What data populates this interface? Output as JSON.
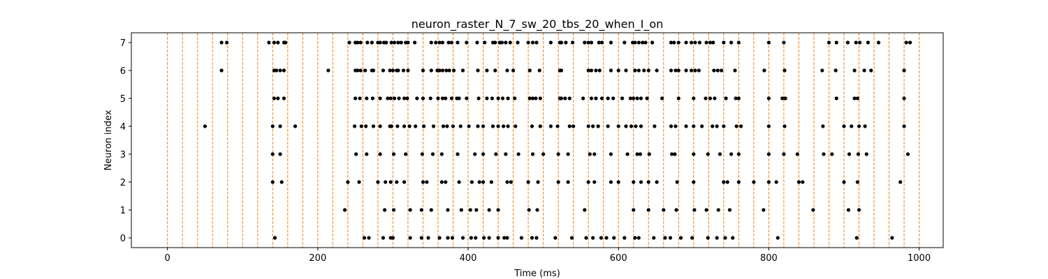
{
  "chart_data": {
    "type": "scatter",
    "title": "neuron_raster_N_7_sw_20_tbs_20_when_I_on",
    "xlabel": "Time (ms)",
    "ylabel": "Neuron index",
    "xlim": [
      -48,
      1032
    ],
    "ylim": [
      -0.35,
      7.35
    ],
    "xticks": [
      0,
      200,
      400,
      600,
      800,
      1000
    ],
    "yticks": [
      0,
      1,
      2,
      3,
      4,
      5,
      6,
      7
    ],
    "grid": false,
    "legend": "none",
    "marker_color": "#000000",
    "vline_color": "#ff7f0e",
    "vlines": [
      0,
      20,
      40,
      60,
      80,
      100,
      120,
      140,
      160,
      180,
      200,
      220,
      240,
      260,
      280,
      300,
      320,
      340,
      360,
      380,
      400,
      420,
      440,
      460,
      480,
      500,
      520,
      540,
      560,
      580,
      600,
      620,
      640,
      660,
      680,
      700,
      720,
      740,
      760,
      780,
      800,
      820,
      840,
      860,
      880,
      900,
      920,
      940,
      960,
      980,
      1000
    ],
    "spikes": [
      {
        "neuron": 7,
        "times": [
          72,
          79,
          135,
          142,
          147,
          155,
          157,
          242,
          250,
          253,
          257,
          266,
          272,
          280,
          283,
          288,
          291,
          298,
          302,
          307,
          311,
          317,
          320,
          329,
          351,
          357,
          362,
          366,
          374,
          378,
          386,
          398,
          412,
          422,
          433,
          436,
          442,
          445,
          450,
          456,
          466,
          480,
          486,
          491,
          510,
          522,
          524,
          530,
          539,
          555,
          560,
          564,
          574,
          578,
          590,
          608,
          619,
          622,
          627,
          632,
          636,
          645,
          670,
          674,
          680,
          690,
          697,
          702,
          708,
          717,
          722,
          726,
          740,
          750,
          760,
          800,
          820,
          880,
          890,
          905,
          916,
          921,
          932,
          946,
          983,
          988
        ]
      },
      {
        "neuron": 6,
        "times": [
          72,
          142,
          145,
          150,
          155,
          214,
          250,
          253,
          257,
          263,
          272,
          274,
          287,
          296,
          300,
          305,
          307,
          314,
          320,
          340,
          351,
          359,
          362,
          366,
          371,
          375,
          381,
          393,
          413,
          425,
          436,
          452,
          460,
          482,
          495,
          522,
          524,
          560,
          564,
          570,
          575,
          590,
          600,
          610,
          622,
          627,
          634,
          640,
          651,
          670,
          676,
          680,
          690,
          697,
          702,
          707,
          727,
          732,
          737,
          755,
          794,
          821,
          871,
          889,
          914,
          927,
          936,
          980
        ]
      },
      {
        "neuron": 5,
        "times": [
          142,
          147,
          155,
          250,
          256,
          265,
          273,
          283,
          293,
          297,
          302,
          308,
          315,
          319,
          332,
          340,
          350,
          360,
          366,
          370,
          378,
          385,
          388,
          398,
          414,
          425,
          432,
          440,
          446,
          453,
          462,
          482,
          486,
          490,
          496,
          522,
          524,
          529,
          535,
          553,
          564,
          570,
          578,
          586,
          593,
          605,
          616,
          620,
          625,
          630,
          638,
          658,
          680,
          700,
          716,
          722,
          728,
          743,
          756,
          760,
          800,
          818,
          822,
          890,
          914,
          918,
          980
        ]
      },
      {
        "neuron": 4,
        "times": [
          50,
          140,
          150,
          170,
          249,
          258,
          264,
          274,
          283,
          296,
          298,
          306,
          315,
          322,
          330,
          341,
          354,
          367,
          372,
          380,
          390,
          401,
          413,
          420,
          433,
          440,
          447,
          453,
          463,
          485,
          496,
          510,
          519,
          535,
          540,
          560,
          566,
          573,
          586,
          600,
          610,
          617,
          623,
          630,
          648,
          670,
          676,
          690,
          700,
          711,
          725,
          731,
          740,
          757,
          763,
          800,
          821,
          872,
          900,
          910,
          920,
          928,
          980
        ]
      },
      {
        "neuron": 3,
        "times": [
          140,
          150,
          251,
          265,
          283,
          301,
          317,
          339,
          353,
          365,
          386,
          409,
          420,
          437,
          450,
          467,
          486,
          500,
          520,
          533,
          562,
          568,
          590,
          612,
          625,
          629,
          641,
          671,
          675,
          700,
          719,
          735,
          750,
          760,
          800,
          820,
          838,
          873,
          884,
          907,
          919,
          930,
          985
        ]
      },
      {
        "neuron": 2,
        "times": [
          140,
          152,
          240,
          255,
          280,
          290,
          297,
          305,
          315,
          340,
          345,
          365,
          370,
          388,
          405,
          415,
          420,
          431,
          452,
          457,
          480,
          493,
          520,
          533,
          560,
          568,
          590,
          600,
          620,
          630,
          640,
          651,
          678,
          700,
          740,
          745,
          760,
          780,
          800,
          810,
          840,
          845,
          900,
          918,
          975
        ]
      },
      {
        "neuron": 1,
        "times": [
          236,
          289,
          301,
          323,
          338,
          351,
          373,
          391,
          403,
          411,
          428,
          440,
          481,
          492,
          555,
          620,
          640,
          660,
          677,
          701,
          717,
          733,
          748,
          793,
          859,
          906,
          920
        ]
      },
      {
        "neuron": 0,
        "times": [
          143,
          262,
          268,
          287,
          297,
          300,
          323,
          338,
          347,
          362,
          373,
          379,
          393,
          404,
          410,
          421,
          428,
          440,
          448,
          452,
          471,
          485,
          491,
          516,
          538,
          557,
          566,
          577,
          584,
          594,
          608,
          622,
          627,
          647,
          662,
          669,
          683,
          698,
          719,
          731,
          742,
          752,
          812,
          917,
          964
        ]
      }
    ]
  }
}
